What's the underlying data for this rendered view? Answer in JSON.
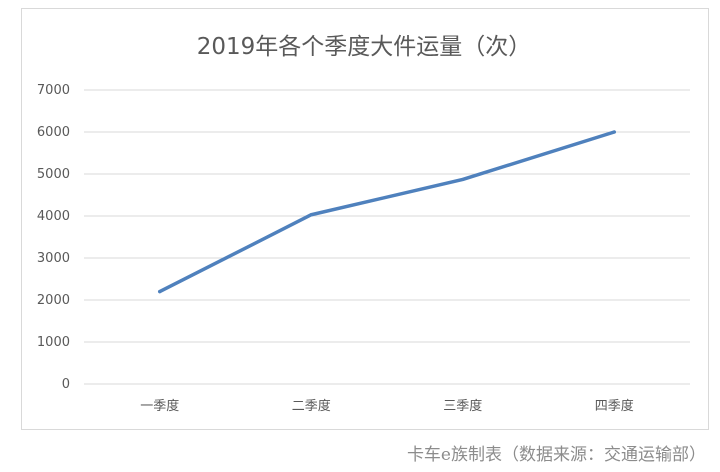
{
  "chart_data": {
    "type": "line",
    "title": "2019年各个季度大件运量（次）",
    "categories": [
      "一季度",
      "二季度",
      "三季度",
      "四季度"
    ],
    "series": [
      {
        "values": [
          2200,
          4030,
          4870,
          6000
        ],
        "color": "#4f81bd"
      }
    ],
    "ylim": [
      0,
      7000
    ],
    "yticks": [
      "0",
      "1000",
      "2000",
      "3000",
      "4000",
      "5000",
      "6000",
      "7000"
    ],
    "grid": true,
    "legend": "none"
  },
  "footer": {
    "source_note": "卡车e族制表（数据来源：交通运输部）"
  }
}
